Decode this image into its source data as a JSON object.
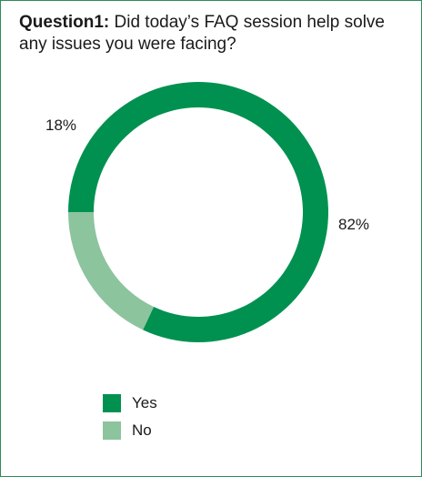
{
  "title": {
    "prefix": "Question1:",
    "text": " Did today’s FAQ session help solve any issues you were facing?"
  },
  "colors": {
    "yes": "#009150",
    "no": "#8cc49e",
    "border": "#2e8b57"
  },
  "chart_data": {
    "type": "pie",
    "donut": true,
    "title": "Question1: Did today’s FAQ session help solve any issues you were facing?",
    "categories": [
      "Yes",
      "No"
    ],
    "values": [
      82,
      18
    ],
    "labels": [
      "82%",
      "18%"
    ],
    "legend_position": "bottom-left"
  },
  "legend": [
    {
      "label": "Yes"
    },
    {
      "label": "No"
    }
  ]
}
